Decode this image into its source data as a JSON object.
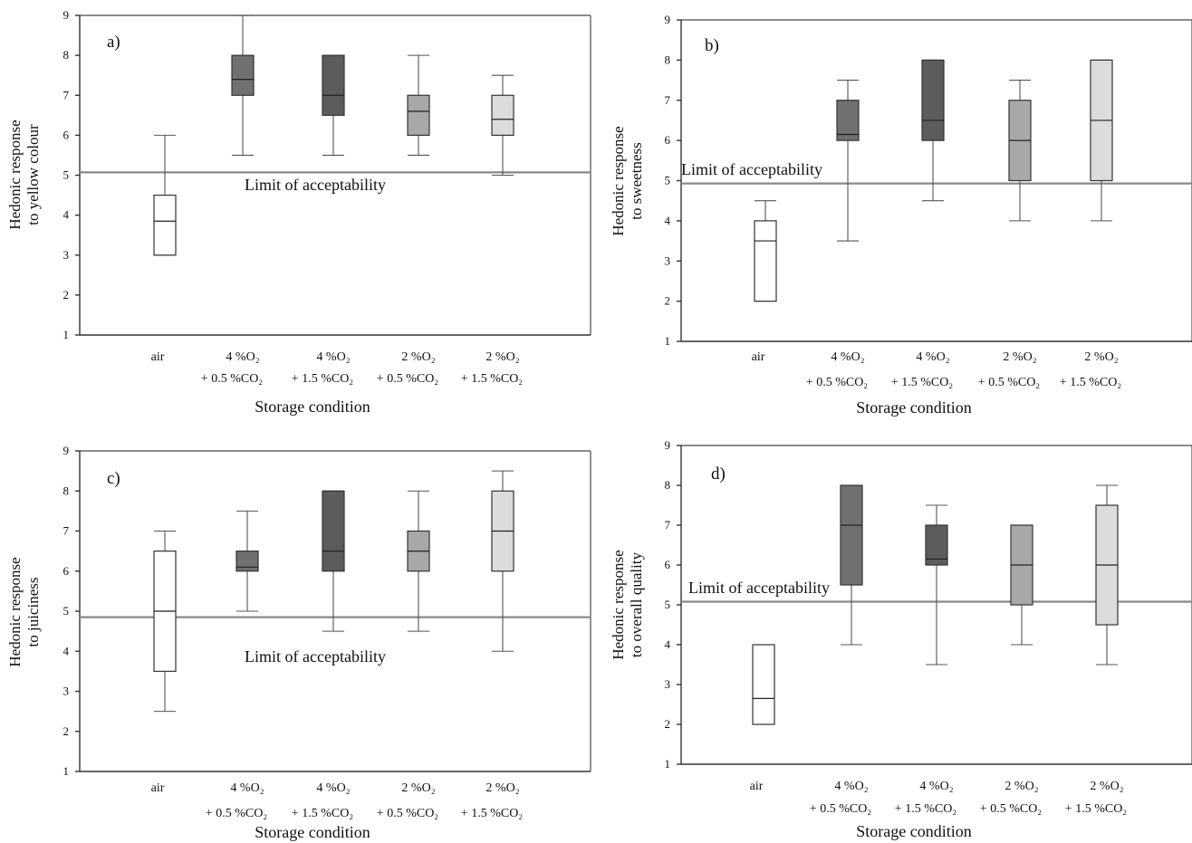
{
  "chart_data": [
    {
      "type": "box",
      "panel_label": "a)",
      "ylabel": [
        "Hedonic response",
        "to yellow colour"
      ],
      "xlabel": "Storage condition",
      "yticks": [
        1,
        2,
        3,
        4,
        5,
        6,
        7,
        8,
        9
      ],
      "ylim": [
        1,
        9
      ],
      "limit_line": 5.07,
      "limit_label": "Limit of acceptability",
      "categories": [
        [
          "air"
        ],
        [
          "4 %O₂",
          "+ 0.5 %CO₂"
        ],
        [
          "4 %O₂",
          "+ 1.5 %CO₂"
        ],
        [
          "2 %O₂",
          "+ 0.5 %CO₂"
        ],
        [
          "2 %O₂",
          "+ 1.5 %CO₂"
        ]
      ],
      "boxes": [
        {
          "min": 3.0,
          "q1": 3.0,
          "median": 3.85,
          "q3": 4.5,
          "max": 6.0
        },
        {
          "min": 5.5,
          "q1": 7.0,
          "median": 7.4,
          "q3": 8.0,
          "max": 9.0
        },
        {
          "min": 5.5,
          "q1": 6.5,
          "median": 7.0,
          "q3": 8.0,
          "max": 8.0
        },
        {
          "min": 5.5,
          "q1": 6.0,
          "median": 6.6,
          "q3": 7.0,
          "max": 8.0
        },
        {
          "min": 5.0,
          "q1": 6.0,
          "median": 6.4,
          "q3": 7.0,
          "max": 7.5
        }
      ]
    },
    {
      "type": "box",
      "panel_label": "b)",
      "ylabel": [
        "Hedonic response",
        "to sweetness"
      ],
      "xlabel": "Storage condition",
      "yticks": [
        1,
        2,
        3,
        4,
        5,
        6,
        7,
        8,
        9
      ],
      "ylim": [
        1,
        9
      ],
      "limit_line": 4.93,
      "limit_label": "Limit of acceptability",
      "categories": [
        [
          "air"
        ],
        [
          "4 %O₂",
          "+ 0.5 %CO₂"
        ],
        [
          "4 %O₂",
          "+ 1.5 %CO₂"
        ],
        [
          "2 %O₂",
          "+ 0.5 %CO₂"
        ],
        [
          "2 %O₂",
          "+ 1.5 %CO₂"
        ]
      ],
      "boxes": [
        {
          "min": 2.0,
          "q1": 2.0,
          "median": 3.5,
          "q3": 4.0,
          "max": 4.5
        },
        {
          "min": 3.5,
          "q1": 6.0,
          "median": 6.15,
          "q3": 7.0,
          "max": 7.5
        },
        {
          "min": 4.5,
          "q1": 6.0,
          "median": 6.5,
          "q3": 8.0,
          "max": 8.0
        },
        {
          "min": 4.0,
          "q1": 5.0,
          "median": 6.0,
          "q3": 7.0,
          "max": 7.5
        },
        {
          "min": 4.0,
          "q1": 5.0,
          "median": 6.5,
          "q3": 8.0,
          "max": 8.0
        }
      ]
    },
    {
      "type": "box",
      "panel_label": "c)",
      "ylabel": [
        "Hedonic response",
        "to juiciness"
      ],
      "xlabel": "Storage condition",
      "yticks": [
        1,
        2,
        3,
        4,
        5,
        6,
        7,
        8,
        9
      ],
      "ylim": [
        1,
        9
      ],
      "limit_line": 4.85,
      "limit_label": "Limit of acceptability",
      "categories": [
        [
          "air"
        ],
        [
          "4 %O₂",
          "+ 0.5 %CO₂"
        ],
        [
          "4 %O₂",
          "+ 1.5 %CO₂"
        ],
        [
          "2 %O₂",
          "+ 0.5 %CO₂"
        ],
        [
          "2 %O₂",
          "+ 1.5 %CO₂"
        ]
      ],
      "boxes": [
        {
          "min": 2.5,
          "q1": 3.5,
          "median": 5.0,
          "q3": 6.5,
          "max": 7.0
        },
        {
          "min": 5.0,
          "q1": 6.0,
          "median": 6.1,
          "q3": 6.5,
          "max": 7.5
        },
        {
          "min": 4.5,
          "q1": 6.0,
          "median": 6.5,
          "q3": 8.0,
          "max": 8.0
        },
        {
          "min": 4.5,
          "q1": 6.0,
          "median": 6.5,
          "q3": 7.0,
          "max": 8.0
        },
        {
          "min": 4.0,
          "q1": 6.0,
          "median": 7.0,
          "q3": 8.0,
          "max": 8.5
        }
      ]
    },
    {
      "type": "box",
      "panel_label": "d)",
      "ylabel": [
        "Hedonic response",
        "to overall quality"
      ],
      "xlabel": "Storage condition",
      "yticks": [
        1,
        2,
        3,
        4,
        5,
        6,
        7,
        8,
        9
      ],
      "ylim": [
        1,
        9
      ],
      "limit_line": 5.08,
      "limit_label": "Limit of acceptability",
      "categories": [
        [
          "air"
        ],
        [
          "4 %O₂",
          "+ 0.5 %CO₂"
        ],
        [
          "4 %O₂",
          "+ 1.5 %CO₂"
        ],
        [
          "2 %O₂",
          "+ 0.5 %CO₂"
        ],
        [
          "2 %O₂",
          "+ 1.5 %CO₂"
        ]
      ],
      "boxes": [
        {
          "min": 2.0,
          "q1": 2.0,
          "median": 2.65,
          "q3": 4.0,
          "max": 4.0
        },
        {
          "min": 4.0,
          "q1": 5.5,
          "median": 7.0,
          "q3": 8.0,
          "max": 8.0
        },
        {
          "min": 3.5,
          "q1": 6.0,
          "median": 6.15,
          "q3": 7.0,
          "max": 7.5
        },
        {
          "min": 4.0,
          "q1": 5.0,
          "median": 6.0,
          "q3": 7.0,
          "max": 7.0
        },
        {
          "min": 3.5,
          "q1": 4.5,
          "median": 6.0,
          "q3": 7.5,
          "max": 8.0
        }
      ]
    }
  ],
  "colors": {
    "box_fills": [
      "#ffffff",
      "#707070",
      "#5c5c5c",
      "#a8a8a8",
      "#dcdcdc"
    ],
    "limit_line": "#888888"
  }
}
